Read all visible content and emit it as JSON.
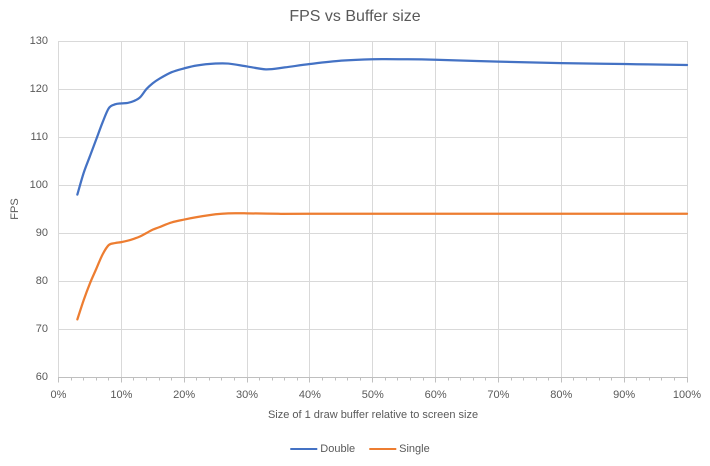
{
  "window": {
    "background": "#FFFFFF"
  },
  "chart_data": {
    "type": "line",
    "title": "FPS vs Buffer size",
    "xlabel": "Size of 1 draw buffer relative to screen size",
    "ylabel": "FPS",
    "xlim": [
      0,
      100
    ],
    "ylim": [
      60,
      130
    ],
    "x_tick_labels": [
      "0%",
      "10%",
      "20%",
      "30%",
      "40%",
      "50%",
      "60%",
      "70%",
      "80%",
      "90%",
      "100%"
    ],
    "y_tick_labels": [
      "60",
      "70",
      "80",
      "90",
      "100",
      "110",
      "120",
      "130"
    ],
    "x_minor_tick_step_pct": 2,
    "grid": true,
    "smoothed_lines": true,
    "legend_position": "bottom-center",
    "series": [
      {
        "name": "Double",
        "color": "#4472C4",
        "points": [
          [
            3,
            98
          ],
          [
            4,
            102.5
          ],
          [
            5,
            106
          ],
          [
            6,
            109.5
          ],
          [
            7,
            113
          ],
          [
            8,
            116
          ],
          [
            9,
            116.8
          ],
          [
            10,
            117
          ],
          [
            11,
            117.1
          ],
          [
            12,
            117.5
          ],
          [
            13,
            118.3
          ],
          [
            14,
            120
          ],
          [
            15,
            121.2
          ],
          [
            16,
            122.1
          ],
          [
            18,
            123.5
          ],
          [
            20,
            124.3
          ],
          [
            22,
            124.9
          ],
          [
            25,
            125.3
          ],
          [
            27,
            125.3
          ],
          [
            30,
            124.7
          ],
          [
            33,
            124.1
          ],
          [
            36,
            124.5
          ],
          [
            40,
            125.2
          ],
          [
            45,
            125.9
          ],
          [
            50,
            126.2
          ],
          [
            55,
            126.2
          ],
          [
            60,
            126.1
          ],
          [
            70,
            125.7
          ],
          [
            80,
            125.4
          ],
          [
            90,
            125.2
          ],
          [
            100,
            125
          ]
        ]
      },
      {
        "name": "Single",
        "color": "#ED7D31",
        "points": [
          [
            3,
            72
          ],
          [
            4,
            76
          ],
          [
            5,
            79.5
          ],
          [
            6,
            82.5
          ],
          [
            7,
            85.5
          ],
          [
            8,
            87.5
          ],
          [
            9,
            87.9
          ],
          [
            10,
            88.1
          ],
          [
            11,
            88.4
          ],
          [
            12,
            88.8
          ],
          [
            13,
            89.3
          ],
          [
            14,
            90
          ],
          [
            15,
            90.7
          ],
          [
            16,
            91.2
          ],
          [
            18,
            92.2
          ],
          [
            20,
            92.8
          ],
          [
            22,
            93.3
          ],
          [
            25,
            93.9
          ],
          [
            27,
            94.1
          ],
          [
            30,
            94.1
          ],
          [
            35,
            94
          ],
          [
            40,
            94
          ],
          [
            45,
            94
          ],
          [
            50,
            94
          ],
          [
            55,
            94
          ],
          [
            60,
            94
          ],
          [
            70,
            94
          ],
          [
            80,
            94
          ],
          [
            90,
            94
          ],
          [
            100,
            94
          ]
        ]
      }
    ],
    "style": {
      "grid_color": "#D9D9D9",
      "axis_color": "#BFBFBF",
      "text_color": "#595959",
      "line_width": 2.25
    }
  }
}
